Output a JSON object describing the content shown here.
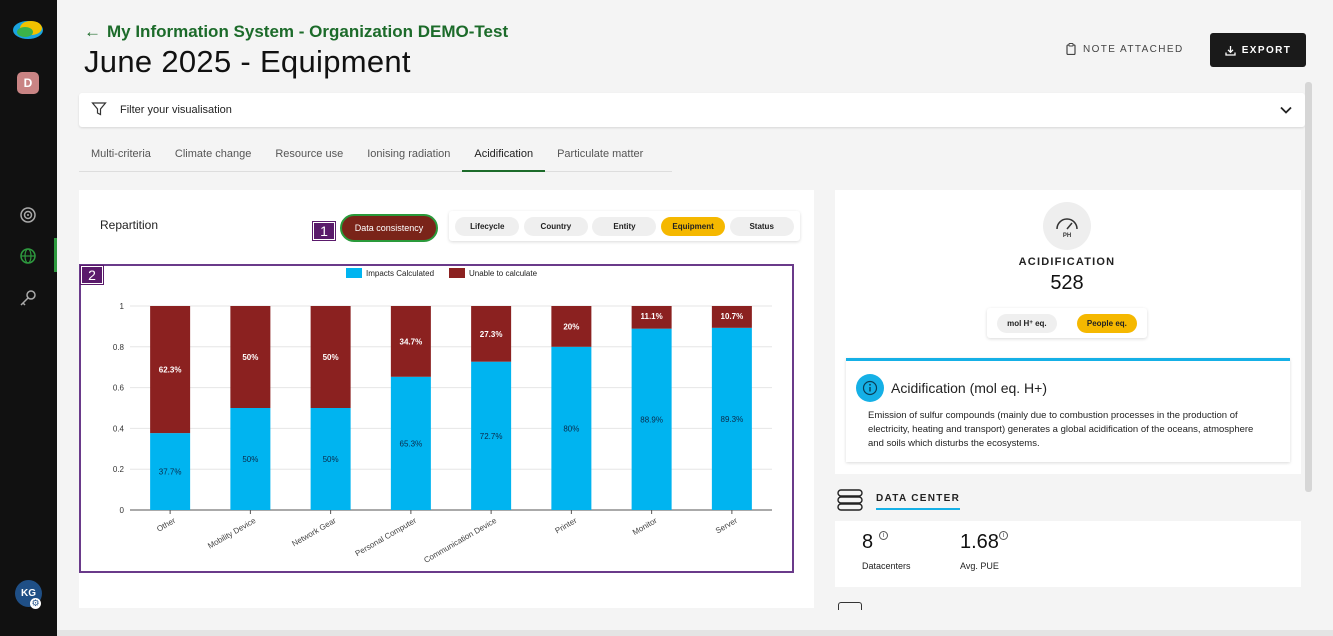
{
  "header": {
    "back_title": "My Information System - Organization DEMO-Test",
    "page_title": "June 2025 - Equipment",
    "note_label": "NOTE ATTACHED",
    "export_label": "EXPORT"
  },
  "sidebar": {
    "avatar_initial": "D",
    "user_initials": "KG",
    "icons": [
      "target-icon",
      "globe-icon",
      "key-icon"
    ]
  },
  "filter": {
    "label": "Filter your visualisation"
  },
  "tabs": [
    {
      "label": "Multi-criteria",
      "active": false
    },
    {
      "label": "Climate change",
      "active": false
    },
    {
      "label": "Resource use",
      "active": false
    },
    {
      "label": "Ionising radiation",
      "active": false
    },
    {
      "label": "Acidification",
      "active": true
    },
    {
      "label": "Particulate matter",
      "active": false
    }
  ],
  "repartition": {
    "title": "Repartition",
    "consistency_label": "Data consistency",
    "groupings": [
      {
        "label": "Lifecycle",
        "active": false
      },
      {
        "label": "Country",
        "active": false
      },
      {
        "label": "Entity",
        "active": false
      },
      {
        "label": "Equipment",
        "active": true
      },
      {
        "label": "Status",
        "active": false
      }
    ]
  },
  "markers": [
    "1",
    "2"
  ],
  "chart_data": {
    "type": "bar",
    "stacked": true,
    "categories": [
      "Other",
      "Mobility Device",
      "Network Gear",
      "Personal Computer",
      "Communication Device",
      "Printer",
      "Monitor",
      "Server"
    ],
    "series": [
      {
        "name": "Impacts Calculated",
        "color": "#00b4f0",
        "values": [
          0.377,
          0.5,
          0.5,
          0.653,
          0.727,
          0.8,
          0.889,
          0.893
        ],
        "labels": [
          "37.7%",
          "50%",
          "50%",
          "65.3%",
          "72.7%",
          "80%",
          "88.9%",
          "89.3%"
        ]
      },
      {
        "name": "Unable to calculate",
        "color": "#8b2120",
        "values": [
          0.623,
          0.5,
          0.5,
          0.347,
          0.273,
          0.2,
          0.111,
          0.107
        ],
        "labels": [
          "62.3%",
          "50%",
          "50%",
          "34.7%",
          "27.3%",
          "20%",
          "11.1%",
          "10.7%"
        ]
      }
    ],
    "ylim": [
      0,
      1
    ],
    "yticks": [
      "0",
      "0.2",
      "0.4",
      "0.6",
      "0.8",
      "1"
    ],
    "legend": "top-center",
    "grid": true
  },
  "acidification": {
    "icon_label": "PH",
    "label": "ACIDIFICATION",
    "value": "528",
    "units": [
      {
        "label": "mol H",
        "sup": "+",
        "suffix": " eq.",
        "active": false
      },
      {
        "label": "People eq.",
        "sup": "",
        "suffix": "",
        "active": true
      }
    ],
    "info_title": "Acidification (mol eq. H+)",
    "info_text": "Emission of sulfur compounds (mainly due to combustion processes in the production of electricity, heating and transport) generates a global acidification of the oceans, atmosphere and soils which disturbs the ecosystems."
  },
  "data_center": {
    "label": "DATA CENTER",
    "stats": [
      {
        "value": "8",
        "label": "Datacenters"
      },
      {
        "value": "1.68",
        "label": "Avg. PUE"
      }
    ]
  },
  "colors": {
    "accent_green": "#1c6b2a",
    "highlight": "#f5b800",
    "info_blue": "#15b0e6",
    "consistency": "#7a2419"
  }
}
